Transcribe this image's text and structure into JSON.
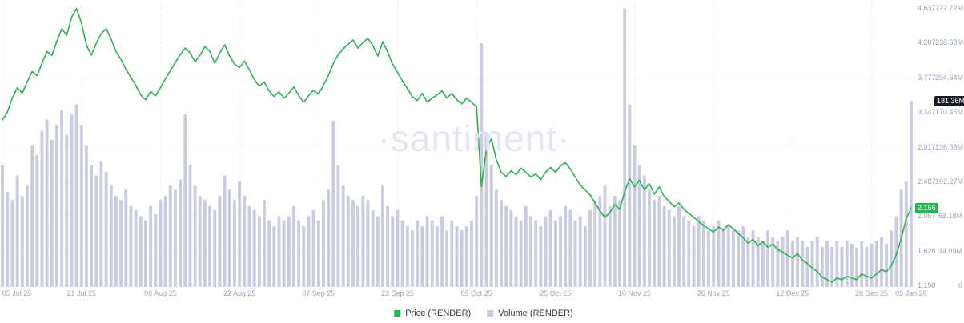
{
  "watermark": "·santiment·",
  "legend": [
    {
      "label": "Price (RENDER)",
      "color": "#2BB353"
    },
    {
      "label": "Volume (RENDER)",
      "color": "#C9CBE1"
    }
  ],
  "badges": {
    "price": {
      "text": "2.156",
      "value": 2.156
    },
    "volume": {
      "text": "181.36M",
      "value": 181.36
    }
  },
  "chart_data": {
    "type": "line+bar",
    "title": "",
    "grid": true,
    "legend_position": "bottom",
    "colors": {
      "price_line": "#2BB353",
      "volume_bar": "#C9CBE1",
      "grid": "#E8EAF1",
      "axis_text": "#9CA3B8",
      "price_badge_bg": "#2BB353",
      "volume_badge_bg": "#181B25",
      "watermark": "#E4E7F3"
    },
    "x_ticks": [
      {
        "i": 0,
        "label": "05 Jul 25"
      },
      {
        "i": 16,
        "label": "21 Jul 25"
      },
      {
        "i": 32,
        "label": "06 Aug 25"
      },
      {
        "i": 48,
        "label": "22 Aug 25"
      },
      {
        "i": 64,
        "label": "07 Sep 25"
      },
      {
        "i": 80,
        "label": "23 Sep 25"
      },
      {
        "i": 96,
        "label": "09 Oct 25"
      },
      {
        "i": 112,
        "label": "25 Oct 25"
      },
      {
        "i": 128,
        "label": "10 Nov 25"
      },
      {
        "i": 144,
        "label": "26 Nov 25"
      },
      {
        "i": 160,
        "label": "12 Dec 25"
      },
      {
        "i": 176,
        "label": "28 Dec 25"
      },
      {
        "i": 184,
        "label": "05 Jan 26"
      }
    ],
    "price_axis": {
      "min": 1.198,
      "max": 4.637,
      "ticks": [
        {
          "v": 4.637,
          "label": "4.637"
        },
        {
          "v": 4.207,
          "label": "4.207"
        },
        {
          "v": 3.777,
          "label": "3.777"
        },
        {
          "v": 3.347,
          "label": "3.347"
        },
        {
          "v": 2.917,
          "label": "2.917"
        },
        {
          "v": 2.487,
          "label": "2.487"
        },
        {
          "v": 2.057,
          "label": "2.057"
        },
        {
          "v": 1.628,
          "label": "1.628"
        },
        {
          "v": 1.198,
          "label": "1.198"
        }
      ]
    },
    "volume_axis": {
      "min": 0,
      "max": 272.72,
      "unit": "M",
      "ticks": [
        {
          "v": 272.72,
          "label": "272.72M"
        },
        {
          "v": 238.63,
          "label": "238.63M"
        },
        {
          "v": 204.54,
          "label": "204.54M"
        },
        {
          "v": 170.45,
          "label": "170.45M"
        },
        {
          "v": 136.36,
          "label": "136.36M"
        },
        {
          "v": 102.27,
          "label": "102.27M"
        },
        {
          "v": 68.18,
          "label": "68.18M"
        },
        {
          "v": 34.09,
          "label": "34.09M"
        },
        {
          "v": 0,
          "label": "0"
        }
      ]
    },
    "series": [
      {
        "name": "Price (RENDER)",
        "type": "line",
        "color": "#2BB353",
        "values": [
          3.25,
          3.35,
          3.52,
          3.65,
          3.58,
          3.72,
          3.85,
          3.8,
          3.95,
          4.1,
          4.05,
          4.22,
          4.38,
          4.3,
          4.52,
          4.63,
          4.45,
          4.18,
          4.05,
          4.2,
          4.32,
          4.38,
          4.25,
          4.1,
          4.0,
          3.88,
          3.78,
          3.68,
          3.56,
          3.5,
          3.6,
          3.55,
          3.65,
          3.76,
          3.86,
          3.96,
          4.06,
          4.14,
          4.08,
          3.97,
          4.05,
          4.16,
          4.1,
          3.95,
          4.08,
          4.18,
          4.04,
          3.94,
          3.9,
          3.98,
          3.87,
          3.75,
          3.67,
          3.72,
          3.61,
          3.54,
          3.6,
          3.52,
          3.58,
          3.66,
          3.55,
          3.47,
          3.55,
          3.62,
          3.57,
          3.68,
          3.8,
          3.95,
          4.06,
          4.13,
          4.19,
          4.24,
          4.14,
          4.21,
          4.26,
          4.17,
          4.04,
          4.22,
          4.09,
          3.94,
          3.84,
          3.73,
          3.64,
          3.54,
          3.49,
          3.58,
          3.47,
          3.52,
          3.56,
          3.61,
          3.52,
          3.58,
          3.5,
          3.45,
          3.52,
          3.47,
          3.41,
          2.42,
          2.88,
          3.02,
          2.76,
          2.6,
          2.55,
          2.62,
          2.57,
          2.65,
          2.6,
          2.54,
          2.58,
          2.51,
          2.6,
          2.66,
          2.6,
          2.68,
          2.72,
          2.64,
          2.54,
          2.44,
          2.38,
          2.32,
          2.22,
          2.12,
          2.04,
          2.1,
          2.2,
          2.14,
          2.36,
          2.52,
          2.42,
          2.5,
          2.38,
          2.46,
          2.33,
          2.42,
          2.3,
          2.24,
          2.17,
          2.22,
          2.14,
          2.09,
          2.04,
          1.99,
          1.94,
          1.9,
          1.86,
          1.92,
          1.88,
          1.95,
          1.9,
          1.84,
          1.79,
          1.72,
          1.77,
          1.69,
          1.74,
          1.67,
          1.71,
          1.64,
          1.61,
          1.57,
          1.54,
          1.59,
          1.51,
          1.47,
          1.41,
          1.37,
          1.3,
          1.27,
          1.24,
          1.29,
          1.27,
          1.31,
          1.29,
          1.27,
          1.34,
          1.31,
          1.29,
          1.34,
          1.39,
          1.37,
          1.44,
          1.58,
          1.78,
          2.02,
          2.156
        ]
      },
      {
        "name": "Volume (RENDER)",
        "type": "bar",
        "color": "#C9CBE1",
        "unit": "M",
        "values": [
          118,
          92,
          84,
          108,
          88,
          98,
          138,
          128,
          152,
          163,
          143,
          158,
          172,
          148,
          168,
          178,
          158,
          138,
          118,
          108,
          122,
          112,
          98,
          88,
          84,
          94,
          78,
          74,
          68,
          64,
          78,
          70,
          84,
          88,
          98,
          94,
          104,
          168,
          118,
          98,
          88,
          84,
          78,
          74,
          88,
          108,
          94,
          84,
          102,
          88,
          78,
          74,
          68,
          84,
          64,
          58,
          68,
          64,
          68,
          78,
          64,
          58,
          68,
          74,
          64,
          84,
          94,
          162,
          118,
          98,
          88,
          84,
          78,
          88,
          84,
          74,
          68,
          98,
          78,
          68,
          74,
          64,
          58,
          54,
          64,
          58,
          68,
          64,
          58,
          68,
          54,
          64,
          58,
          54,
          58,
          64,
          88,
          238,
          148,
          118,
          94,
          84,
          78,
          74,
          68,
          64,
          78,
          68,
          64,
          58,
          68,
          74,
          64,
          68,
          78,
          74,
          64,
          68,
          58,
          74,
          84,
          88,
          98,
          78,
          88,
          84,
          272,
          178,
          138,
          118,
          108,
          94,
          84,
          88,
          78,
          74,
          68,
          78,
          68,
          64,
          58,
          68,
          64,
          54,
          58,
          64,
          54,
          58,
          54,
          54,
          58,
          48,
          54,
          48,
          44,
          54,
          48,
          44,
          48,
          54,
          44,
          48,
          44,
          38,
          44,
          48,
          38,
          44,
          38,
          44,
          38,
          44,
          41,
          37,
          44,
          38,
          41,
          44,
          47,
          41,
          54,
          68,
          94,
          102,
          181.36
        ]
      }
    ]
  }
}
